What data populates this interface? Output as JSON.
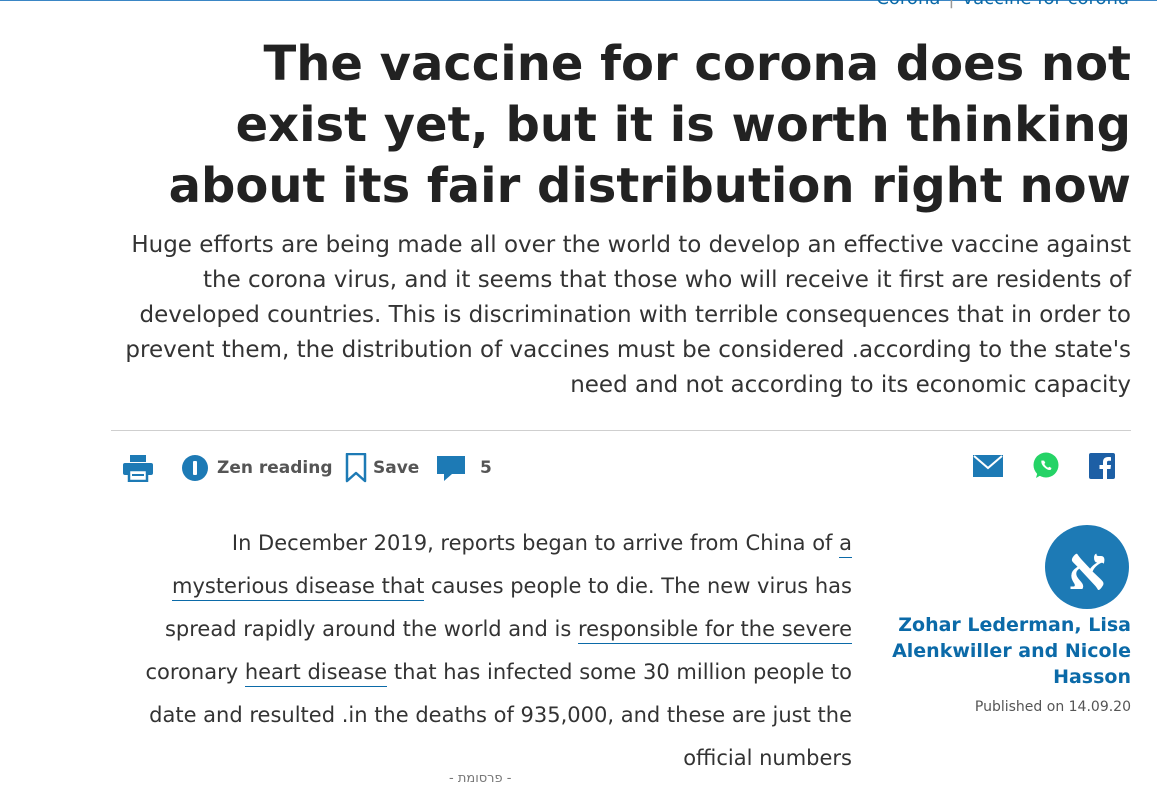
{
  "breadcrumb": {
    "section": "Corona",
    "topic": "vaccine for corona"
  },
  "article": {
    "headline": "The vaccine for corona does not exist yet, but it is worth thinking about its fair distribution right now",
    "subtitle": "Huge efforts are being made all over the world to develop an effective vaccine against the corona virus, and it seems that those who will receive it first are residents of developed countries. This is discrimination with terrible consequences that in order to prevent them, the distribution of vaccines must be considered .according to the state's need and not according to its economic capacity",
    "body": {
      "p1_a": "In December 2019, reports began to arrive from China of ",
      "link1": "a mysterious disease that",
      "p1_b": " causes people to die. The new virus has spread rapidly around the world and is ",
      "link2": "responsible for the severe",
      "p1_c": " coronary ",
      "link3": "heart disease",
      "p1_d": " that has infected some 30 million people to date and resulted .in the deaths of 935,000, and these are just the official numbers"
    }
  },
  "toolbar": {
    "print_icon": "printer-icon",
    "zen_label": "Zen reading",
    "zen_icon": "info-circle-icon",
    "save_label": "Save",
    "save_icon": "bookmark-icon",
    "comments_count": "5",
    "comments_icon": "speech-bubble-icon"
  },
  "share": {
    "mail_icon": "envelope-icon",
    "whatsapp_icon": "whatsapp-icon",
    "facebook_icon": "facebook-icon"
  },
  "author": {
    "names": "Zohar Lederman, Lisa Alenkwiller and Nicole Hasson",
    "published": "Published on 14.09.20",
    "logo_letter": "א"
  },
  "ad": {
    "label": "- פרסומת -"
  },
  "colors": {
    "accent": "#0b6aa8",
    "icon_blue": "#1d7ab5",
    "whatsapp": "#25d366",
    "text": "#222222"
  }
}
